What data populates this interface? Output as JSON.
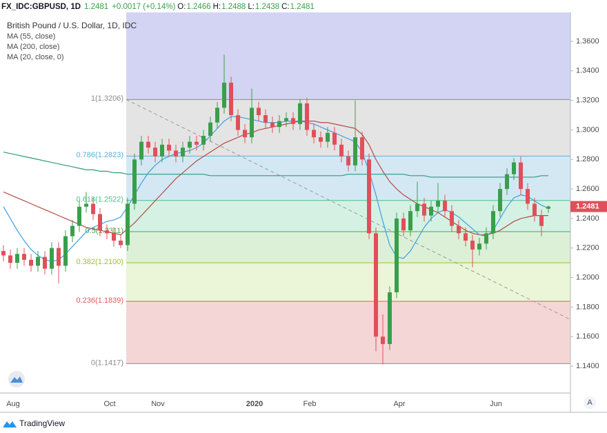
{
  "header": {
    "symbol": "FX_IDC:GBPUSD, 1D",
    "change": "+0.0017 (+0.14%)",
    "labels": [
      "O:",
      "H:",
      "L:",
      "C:"
    ]
  },
  "legend": [
    "British Pound / U.S. Dollar, 1D, IDC",
    "MA (55, close)",
    "MA (200, close)",
    "MA (20, close, 0)"
  ],
  "footer": {
    "brand": "TradingView",
    "button": "A"
  },
  "chart_data": {
    "type": "candlestick",
    "categories": [
      null,
      "Aug",
      null,
      null,
      null,
      null,
      null,
      null,
      null,
      null,
      null,
      null,
      null,
      null,
      null,
      "Oct",
      null,
      null,
      null,
      null,
      null,
      null,
      "Nov",
      null,
      null,
      null,
      null,
      null,
      null,
      null,
      null,
      null,
      null,
      null,
      null,
      null,
      "2020",
      null,
      null,
      null,
      null,
      null,
      null,
      null,
      "Feb",
      null,
      null,
      null,
      null,
      null,
      null,
      null,
      null,
      null,
      null,
      null,
      null,
      "Apr",
      null,
      null,
      null,
      null,
      null,
      null,
      null,
      null,
      null,
      null,
      null,
      null,
      null,
      "Jun",
      null,
      null,
      null,
      null,
      null,
      null,
      null,
      null
    ],
    "ohlc": [
      [
        1.218,
        1.222,
        1.211,
        1.215
      ],
      [
        1.215,
        1.219,
        1.206,
        1.21
      ],
      [
        1.21,
        1.22,
        1.206,
        1.216
      ],
      [
        1.216,
        1.22,
        1.208,
        1.212
      ],
      [
        1.212,
        1.216,
        1.204,
        1.208
      ],
      [
        1.208,
        1.218,
        1.204,
        1.214
      ],
      [
        1.214,
        1.218,
        1.202,
        1.206
      ],
      [
        1.206,
        1.224,
        1.202,
        1.22
      ],
      [
        1.22,
        1.224,
        1.196,
        1.208
      ],
      [
        1.208,
        1.232,
        1.204,
        1.228
      ],
      [
        1.228,
        1.239,
        1.224,
        1.235
      ],
      [
        1.235,
        1.252,
        1.231,
        1.248
      ],
      [
        1.248,
        1.258,
        1.244,
        1.25
      ],
      [
        1.25,
        1.254,
        1.239,
        1.243
      ],
      [
        1.243,
        1.247,
        1.228,
        1.232
      ],
      [
        1.232,
        1.236,
        1.226,
        1.23
      ],
      [
        1.23,
        1.234,
        1.221,
        1.225
      ],
      [
        1.225,
        1.229,
        1.22,
        1.222
      ],
      [
        1.222,
        1.254,
        1.218,
        1.25
      ],
      [
        1.25,
        1.284,
        1.246,
        1.28
      ],
      [
        1.28,
        1.296,
        1.276,
        1.292
      ],
      [
        1.292,
        1.296,
        1.284,
        1.288
      ],
      [
        1.288,
        1.292,
        1.278,
        1.282
      ],
      [
        1.282,
        1.294,
        1.278,
        1.29
      ],
      [
        1.29,
        1.294,
        1.282,
        1.286
      ],
      [
        1.286,
        1.29,
        1.278,
        1.282
      ],
      [
        1.282,
        1.292,
        1.278,
        1.288
      ],
      [
        1.288,
        1.296,
        1.284,
        1.292
      ],
      [
        1.292,
        1.296,
        1.286,
        1.29
      ],
      [
        1.29,
        1.3,
        1.286,
        1.296
      ],
      [
        1.296,
        1.309,
        1.292,
        1.305
      ],
      [
        1.305,
        1.319,
        1.301,
        1.315
      ],
      [
        1.315,
        1.351,
        1.311,
        1.332
      ],
      [
        1.332,
        1.336,
        1.306,
        1.31
      ],
      [
        1.31,
        1.314,
        1.296,
        1.3
      ],
      [
        1.3,
        1.304,
        1.291,
        1.295
      ],
      [
        1.295,
        1.328,
        1.291,
        1.315
      ],
      [
        1.315,
        1.319,
        1.306,
        1.31
      ],
      [
        1.31,
        1.314,
        1.301,
        1.305
      ],
      [
        1.305,
        1.309,
        1.298,
        1.302
      ],
      [
        1.302,
        1.31,
        1.298,
        1.306
      ],
      [
        1.306,
        1.312,
        1.302,
        1.308
      ],
      [
        1.308,
        1.312,
        1.3,
        1.304
      ],
      [
        1.304,
        1.321,
        1.3,
        1.318
      ],
      [
        1.318,
        1.322,
        1.296,
        1.3
      ],
      [
        1.3,
        1.304,
        1.291,
        1.295
      ],
      [
        1.295,
        1.299,
        1.288,
        1.292
      ],
      [
        1.292,
        1.302,
        1.288,
        1.298
      ],
      [
        1.298,
        1.302,
        1.286,
        1.29
      ],
      [
        1.29,
        1.294,
        1.278,
        1.282
      ],
      [
        1.282,
        1.286,
        1.272,
        1.276
      ],
      [
        1.276,
        1.32,
        1.272,
        1.295
      ],
      [
        1.295,
        1.299,
        1.276,
        1.28
      ],
      [
        1.28,
        1.284,
        1.226,
        1.23
      ],
      [
        1.23,
        1.234,
        1.15,
        1.16
      ],
      [
        1.16,
        1.175,
        1.1412,
        1.155
      ],
      [
        1.155,
        1.194,
        1.151,
        1.19
      ],
      [
        1.19,
        1.244,
        1.186,
        1.24
      ],
      [
        1.24,
        1.244,
        1.228,
        1.232
      ],
      [
        1.232,
        1.249,
        1.228,
        1.245
      ],
      [
        1.245,
        1.265,
        1.241,
        1.25
      ],
      [
        1.25,
        1.254,
        1.238,
        1.242
      ],
      [
        1.242,
        1.252,
        1.238,
        1.248
      ],
      [
        1.248,
        1.264,
        1.244,
        1.252
      ],
      [
        1.252,
        1.256,
        1.241,
        1.245
      ],
      [
        1.245,
        1.249,
        1.231,
        1.235
      ],
      [
        1.235,
        1.239,
        1.226,
        1.23
      ],
      [
        1.23,
        1.234,
        1.221,
        1.225
      ],
      [
        1.225,
        1.229,
        1.207,
        1.219
      ],
      [
        1.219,
        1.227,
        1.215,
        1.223
      ],
      [
        1.223,
        1.234,
        1.219,
        1.23
      ],
      [
        1.23,
        1.249,
        1.226,
        1.245
      ],
      [
        1.245,
        1.264,
        1.241,
        1.26
      ],
      [
        1.26,
        1.274,
        1.256,
        1.27
      ],
      [
        1.27,
        1.281,
        1.266,
        1.278
      ],
      [
        1.278,
        1.282,
        1.256,
        1.26
      ],
      [
        1.26,
        1.264,
        1.246,
        1.25
      ],
      [
        1.25,
        1.254,
        1.238,
        1.242
      ],
      [
        1.242,
        1.246,
        1.228,
        1.235
      ],
      [
        1.2466,
        1.2488,
        1.2438,
        1.2481
      ]
    ],
    "up_color": "#3a9e4b",
    "down_color": "#e0505a",
    "series": [
      {
        "name": "MA (55, close)",
        "color": "#b34a44",
        "values": [
          1.258,
          1.256,
          1.254,
          1.252,
          1.25,
          1.248,
          1.246,
          1.244,
          1.242,
          1.24,
          1.238,
          1.236,
          1.234,
          1.233,
          1.232,
          1.231,
          1.23,
          1.229,
          1.233,
          1.237,
          1.242,
          1.247,
          1.252,
          1.257,
          1.262,
          1.267,
          1.271,
          1.275,
          1.279,
          1.282,
          1.285,
          1.288,
          1.291,
          1.293,
          1.295,
          1.297,
          1.298,
          1.3,
          1.301,
          1.302,
          1.303,
          1.304,
          1.305,
          1.306,
          1.306,
          1.306,
          1.305,
          1.305,
          1.304,
          1.303,
          1.302,
          1.301,
          1.297,
          1.29,
          1.28,
          1.272,
          1.265,
          1.26,
          1.256,
          1.253,
          1.25,
          1.248,
          1.246,
          1.244,
          1.241,
          1.238,
          1.235,
          1.232,
          1.23,
          1.229,
          1.229,
          1.23,
          1.232,
          1.235,
          1.238,
          1.24,
          1.241,
          1.242,
          1.242,
          1.242
        ]
      },
      {
        "name": "MA (200, close)",
        "color": "#2a9a80",
        "values": [
          1.285,
          1.284,
          1.283,
          1.282,
          1.281,
          1.28,
          1.279,
          1.278,
          1.277,
          1.276,
          1.275,
          1.274,
          1.273,
          1.273,
          1.272,
          1.272,
          1.271,
          1.271,
          1.27,
          1.27,
          1.27,
          1.27,
          1.27,
          1.27,
          1.27,
          1.27,
          1.27,
          1.27,
          1.27,
          1.27,
          1.269,
          1.269,
          1.269,
          1.269,
          1.269,
          1.269,
          1.269,
          1.269,
          1.269,
          1.269,
          1.269,
          1.269,
          1.269,
          1.269,
          1.269,
          1.269,
          1.269,
          1.269,
          1.269,
          1.269,
          1.27,
          1.27,
          1.27,
          1.27,
          1.27,
          1.27,
          1.27,
          1.27,
          1.27,
          1.269,
          1.269,
          1.269,
          1.268,
          1.268,
          1.268,
          1.268,
          1.268,
          1.268,
          1.268,
          1.268,
          1.268,
          1.268,
          1.268,
          1.268,
          1.268,
          1.268,
          1.268,
          1.268,
          1.269,
          1.269
        ]
      },
      {
        "name": "MA (20, close, 0)",
        "color": "#3d9ee0",
        "values": [
          1.248,
          1.24,
          1.232,
          1.225,
          1.219,
          1.215,
          1.212,
          1.211,
          1.212,
          1.216,
          1.221,
          1.226,
          1.231,
          1.234,
          1.236,
          1.238,
          1.239,
          1.241,
          1.248,
          1.256,
          1.264,
          1.271,
          1.276,
          1.28,
          1.282,
          1.284,
          1.285,
          1.286,
          1.288,
          1.291,
          1.296,
          1.301,
          1.306,
          1.309,
          1.309,
          1.308,
          1.307,
          1.306,
          1.305,
          1.305,
          1.305,
          1.306,
          1.306,
          1.306,
          1.305,
          1.304,
          1.302,
          1.3,
          1.298,
          1.296,
          1.294,
          1.292,
          1.285,
          1.272,
          1.256,
          1.238,
          1.222,
          1.214,
          1.213,
          1.218,
          1.226,
          1.234,
          1.24,
          1.244,
          1.246,
          1.244,
          1.241,
          1.237,
          1.233,
          1.229,
          1.228,
          1.232,
          1.24,
          1.248,
          1.254,
          1.256,
          1.255,
          1.252,
          1.249,
          1.247
        ]
      }
    ],
    "fib_start": 17.8,
    "fib_top_fill": "#d3d4f3",
    "fib_levels": [
      {
        "label": "1(1.3206)",
        "value": 1.3206,
        "color": "#8a8a8a",
        "fill": "#e4e4e4"
      },
      {
        "label": "0.786(1.2823)",
        "value": 1.2823,
        "color": "#5aaedb",
        "fill": "#d4e8f4"
      },
      {
        "label": "0.618(1.2522)",
        "value": 1.2522,
        "color": "#4cbf8a",
        "fill": "#d4f1e4"
      },
      {
        "label": "0.5(1.2311)",
        "value": 1.2311,
        "color": "#45a845",
        "fill": "#dcf0d8"
      },
      {
        "label": "0.382(1.2100)",
        "value": 1.21,
        "color": "#9cc22c",
        "fill": "#ebf5d8"
      },
      {
        "label": "0.236(1.1839)",
        "value": 1.1839,
        "color": "#e05a5a",
        "fill": "#f4d6d6"
      },
      {
        "label": "0(1.1417)",
        "value": 1.1417,
        "color": "#8a8a8a"
      }
    ],
    "trendline": {
      "x": [
        17.8,
        82
      ],
      "y": [
        1.3206,
        1.172
      ]
    },
    "ylim": [
      1.1218,
      1.3796
    ],
    "yticks": [
      {
        "value": 1.14,
        "label": "1.1400"
      },
      {
        "value": 1.16,
        "label": "1.1600"
      },
      {
        "value": 1.18,
        "label": "1.1800"
      },
      {
        "value": 1.2,
        "label": "1.2000"
      },
      {
        "value": 1.22,
        "label": "1.2200"
      },
      {
        "value": 1.24,
        "label": "1.2400"
      },
      {
        "value": 1.26,
        "label": "1.2600"
      },
      {
        "value": 1.28,
        "label": "1.2800"
      },
      {
        "value": 1.3,
        "label": "1.3000"
      },
      {
        "value": 1.32,
        "label": "1.3200"
      },
      {
        "value": 1.34,
        "label": "1.3400"
      },
      {
        "value": 1.36,
        "label": "1.3600"
      }
    ]
  }
}
